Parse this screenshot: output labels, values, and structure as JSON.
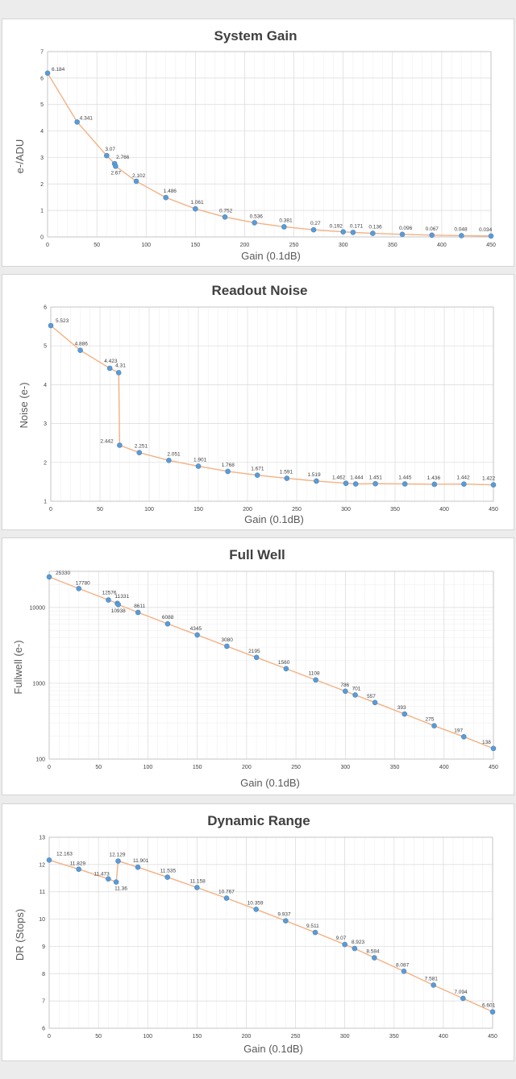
{
  "chart_data": [
    {
      "type": "line",
      "title": "System Gain",
      "xlabel": "Gain (0.1dB)",
      "ylabel": "e-/ADU",
      "xlim": [
        0,
        450
      ],
      "ylim": [
        0,
        7
      ],
      "xticks": [
        0,
        50,
        100,
        150,
        200,
        250,
        300,
        350,
        400,
        450
      ],
      "yticks": [
        0,
        1,
        2,
        3,
        4,
        5,
        6,
        7
      ],
      "yscale": "linear",
      "grid": true,
      "legend": "none",
      "color": "#5b9bd5",
      "line_color": "#f4b183",
      "points": [
        {
          "x": 0,
          "y": 6.184,
          "label": "6.184"
        },
        {
          "x": 30,
          "y": 4.341,
          "label": "4.341"
        },
        {
          "x": 60,
          "y": 3.07,
          "label": "3.07"
        },
        {
          "x": 68,
          "y": 2.766,
          "label": "2.766"
        },
        {
          "x": 69,
          "y": 2.67,
          "label": "2.67"
        },
        {
          "x": 90,
          "y": 2.102,
          "label": "2.102"
        },
        {
          "x": 120,
          "y": 1.486,
          "label": "1.486"
        },
        {
          "x": 150,
          "y": 1.061,
          "label": "1.061"
        },
        {
          "x": 180,
          "y": 0.752,
          "label": "0.752"
        },
        {
          "x": 210,
          "y": 0.536,
          "label": "0.536"
        },
        {
          "x": 240,
          "y": 0.381,
          "label": "0.381"
        },
        {
          "x": 270,
          "y": 0.27,
          "label": "0.27"
        },
        {
          "x": 300,
          "y": 0.192,
          "label": "0.192"
        },
        {
          "x": 310,
          "y": 0.171,
          "label": "0.171"
        },
        {
          "x": 330,
          "y": 0.136,
          "label": "0.136"
        },
        {
          "x": 360,
          "y": 0.096,
          "label": "0.096"
        },
        {
          "x": 390,
          "y": 0.067,
          "label": "0.067"
        },
        {
          "x": 420,
          "y": 0.048,
          "label": "0.048"
        },
        {
          "x": 450,
          "y": 0.034,
          "label": "0.034"
        }
      ]
    },
    {
      "type": "line",
      "title": "Readout Noise",
      "xlabel": "Gain (0.1dB)",
      "ylabel": "Noise (e-)",
      "xlim": [
        0,
        450
      ],
      "ylim": [
        1,
        6
      ],
      "xticks": [
        0,
        50,
        100,
        150,
        200,
        250,
        300,
        350,
        400,
        450
      ],
      "yticks": [
        1,
        2,
        3,
        4,
        5,
        6
      ],
      "yscale": "linear",
      "grid": true,
      "legend": "none",
      "color": "#5b9bd5",
      "line_color": "#f4b183",
      "points": [
        {
          "x": 0,
          "y": 5.523,
          "label": "5.523"
        },
        {
          "x": 30,
          "y": 4.886,
          "label": "4.886"
        },
        {
          "x": 60,
          "y": 4.423,
          "label": "4.423"
        },
        {
          "x": 69,
          "y": 4.31,
          "label": "4.31"
        },
        {
          "x": 70,
          "y": 2.442,
          "label": "2.442"
        },
        {
          "x": 90,
          "y": 2.251,
          "label": "2.251"
        },
        {
          "x": 120,
          "y": 2.051,
          "label": "2.051"
        },
        {
          "x": 150,
          "y": 1.901,
          "label": "1.901"
        },
        {
          "x": 180,
          "y": 1.768,
          "label": "1.768"
        },
        {
          "x": 210,
          "y": 1.671,
          "label": "1.671"
        },
        {
          "x": 240,
          "y": 1.591,
          "label": "1.591"
        },
        {
          "x": 270,
          "y": 1.519,
          "label": "1.519"
        },
        {
          "x": 300,
          "y": 1.462,
          "label": "1.462"
        },
        {
          "x": 310,
          "y": 1.444,
          "label": "1.444"
        },
        {
          "x": 330,
          "y": 1.451,
          "label": "1.451"
        },
        {
          "x": 360,
          "y": 1.445,
          "label": "1.445"
        },
        {
          "x": 390,
          "y": 1.436,
          "label": "1.436"
        },
        {
          "x": 420,
          "y": 1.442,
          "label": "1.442"
        },
        {
          "x": 450,
          "y": 1.422,
          "label": "1.422"
        }
      ]
    },
    {
      "type": "line",
      "title": "Full Well",
      "xlabel": "Gain (0.1dB)",
      "ylabel": "Fullwell (e-)",
      "xlim": [
        0,
        450
      ],
      "ylim": [
        100,
        30000
      ],
      "xticks": [
        0,
        50,
        100,
        150,
        200,
        250,
        300,
        350,
        400,
        450
      ],
      "yticks": [
        100,
        1000,
        10000
      ],
      "yscale": "log",
      "grid": true,
      "legend": "none",
      "color": "#5b9bd5",
      "line_color": "#f4b183",
      "points": [
        {
          "x": 0,
          "y": 25330,
          "label": "25330"
        },
        {
          "x": 30,
          "y": 17780,
          "label": "17780"
        },
        {
          "x": 60,
          "y": 12576,
          "label": "12576"
        },
        {
          "x": 69,
          "y": 11331,
          "label": "11331"
        },
        {
          "x": 70,
          "y": 10938,
          "label": "10938"
        },
        {
          "x": 90,
          "y": 8611,
          "label": "8611"
        },
        {
          "x": 120,
          "y": 6088,
          "label": "6088"
        },
        {
          "x": 150,
          "y": 4345,
          "label": "4345"
        },
        {
          "x": 180,
          "y": 3080,
          "label": "3080"
        },
        {
          "x": 210,
          "y": 2195,
          "label": "2195"
        },
        {
          "x": 240,
          "y": 1560,
          "label": "1560"
        },
        {
          "x": 270,
          "y": 1108,
          "label": "1108"
        },
        {
          "x": 300,
          "y": 786,
          "label": "786"
        },
        {
          "x": 310,
          "y": 701,
          "label": "701"
        },
        {
          "x": 330,
          "y": 557,
          "label": "557"
        },
        {
          "x": 360,
          "y": 393,
          "label": "393"
        },
        {
          "x": 390,
          "y": 275,
          "label": "275"
        },
        {
          "x": 420,
          "y": 197,
          "label": "197"
        },
        {
          "x": 450,
          "y": 138,
          "label": "138"
        }
      ]
    },
    {
      "type": "line",
      "title": "Dynamic Range",
      "xlabel": "Gain (0.1dB)",
      "ylabel": "DR (Stops)",
      "xlim": [
        0,
        450
      ],
      "ylim": [
        6,
        13
      ],
      "xticks": [
        0,
        50,
        100,
        150,
        200,
        250,
        300,
        350,
        400,
        450
      ],
      "yticks": [
        6,
        7,
        8,
        9,
        10,
        11,
        12,
        13
      ],
      "yscale": "linear",
      "grid": true,
      "legend": "none",
      "color": "#5b9bd5",
      "line_color": "#f4b183",
      "points": [
        {
          "x": 0,
          "y": 12.163,
          "label": "12.163"
        },
        {
          "x": 30,
          "y": 11.829,
          "label": "11.829"
        },
        {
          "x": 60,
          "y": 11.473,
          "label": "11.473"
        },
        {
          "x": 68,
          "y": 11.36,
          "label": "11.36"
        },
        {
          "x": 70,
          "y": 12.129,
          "label": "12.129"
        },
        {
          "x": 90,
          "y": 11.901,
          "label": "11.901"
        },
        {
          "x": 120,
          "y": 11.535,
          "label": "11.535"
        },
        {
          "x": 150,
          "y": 11.158,
          "label": "11.158"
        },
        {
          "x": 180,
          "y": 10.767,
          "label": "10.767"
        },
        {
          "x": 210,
          "y": 10.359,
          "label": "10.359"
        },
        {
          "x": 240,
          "y": 9.937,
          "label": "9.937"
        },
        {
          "x": 270,
          "y": 9.511,
          "label": "9.511"
        },
        {
          "x": 300,
          "y": 9.07,
          "label": "9.07"
        },
        {
          "x": 310,
          "y": 8.923,
          "label": "8.923"
        },
        {
          "x": 330,
          "y": 8.584,
          "label": "8.584"
        },
        {
          "x": 360,
          "y": 8.087,
          "label": "8.087"
        },
        {
          "x": 390,
          "y": 7.581,
          "label": "7.581"
        },
        {
          "x": 420,
          "y": 7.094,
          "label": "7.094"
        },
        {
          "x": 450,
          "y": 6.601,
          "label": "6.601"
        }
      ]
    }
  ]
}
